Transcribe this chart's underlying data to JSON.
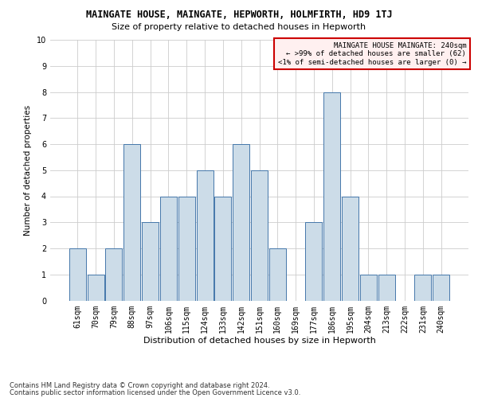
{
  "title": "MAINGATE HOUSE, MAINGATE, HEPWORTH, HOLMFIRTH, HD9 1TJ",
  "subtitle": "Size of property relative to detached houses in Hepworth",
  "xlabel": "Distribution of detached houses by size in Hepworth",
  "ylabel": "Number of detached properties",
  "categories": [
    "61sqm",
    "70sqm",
    "79sqm",
    "88sqm",
    "97sqm",
    "106sqm",
    "115sqm",
    "124sqm",
    "133sqm",
    "142sqm",
    "151sqm",
    "160sqm",
    "169sqm",
    "177sqm",
    "186sqm",
    "195sqm",
    "204sqm",
    "213sqm",
    "222sqm",
    "231sqm",
    "240sqm"
  ],
  "values": [
    2,
    1,
    2,
    6,
    3,
    4,
    4,
    5,
    4,
    6,
    5,
    2,
    0,
    3,
    8,
    4,
    1,
    1,
    0,
    1,
    1
  ],
  "bar_color": "#ccdce8",
  "bar_edge_color": "#4477aa",
  "ylim": [
    0,
    10
  ],
  "yticks": [
    0,
    1,
    2,
    3,
    4,
    5,
    6,
    7,
    8,
    9,
    10
  ],
  "legend_title": "MAINGATE HOUSE MAINGATE: 240sqm",
  "legend_line1": "← >99% of detached houses are smaller (62)",
  "legend_line2": "<1% of semi-detached houses are larger (0) →",
  "legend_box_facecolor": "#fff0f0",
  "legend_box_edgecolor": "#cc0000",
  "footer1": "Contains HM Land Registry data © Crown copyright and database right 2024.",
  "footer2": "Contains public sector information licensed under the Open Government Licence v3.0.",
  "grid_color": "#cccccc",
  "title_fontsize": 8.5,
  "subtitle_fontsize": 8,
  "tick_fontsize": 7,
  "ylabel_fontsize": 7.5,
  "xlabel_fontsize": 8,
  "legend_fontsize": 6.5,
  "footer_fontsize": 6
}
